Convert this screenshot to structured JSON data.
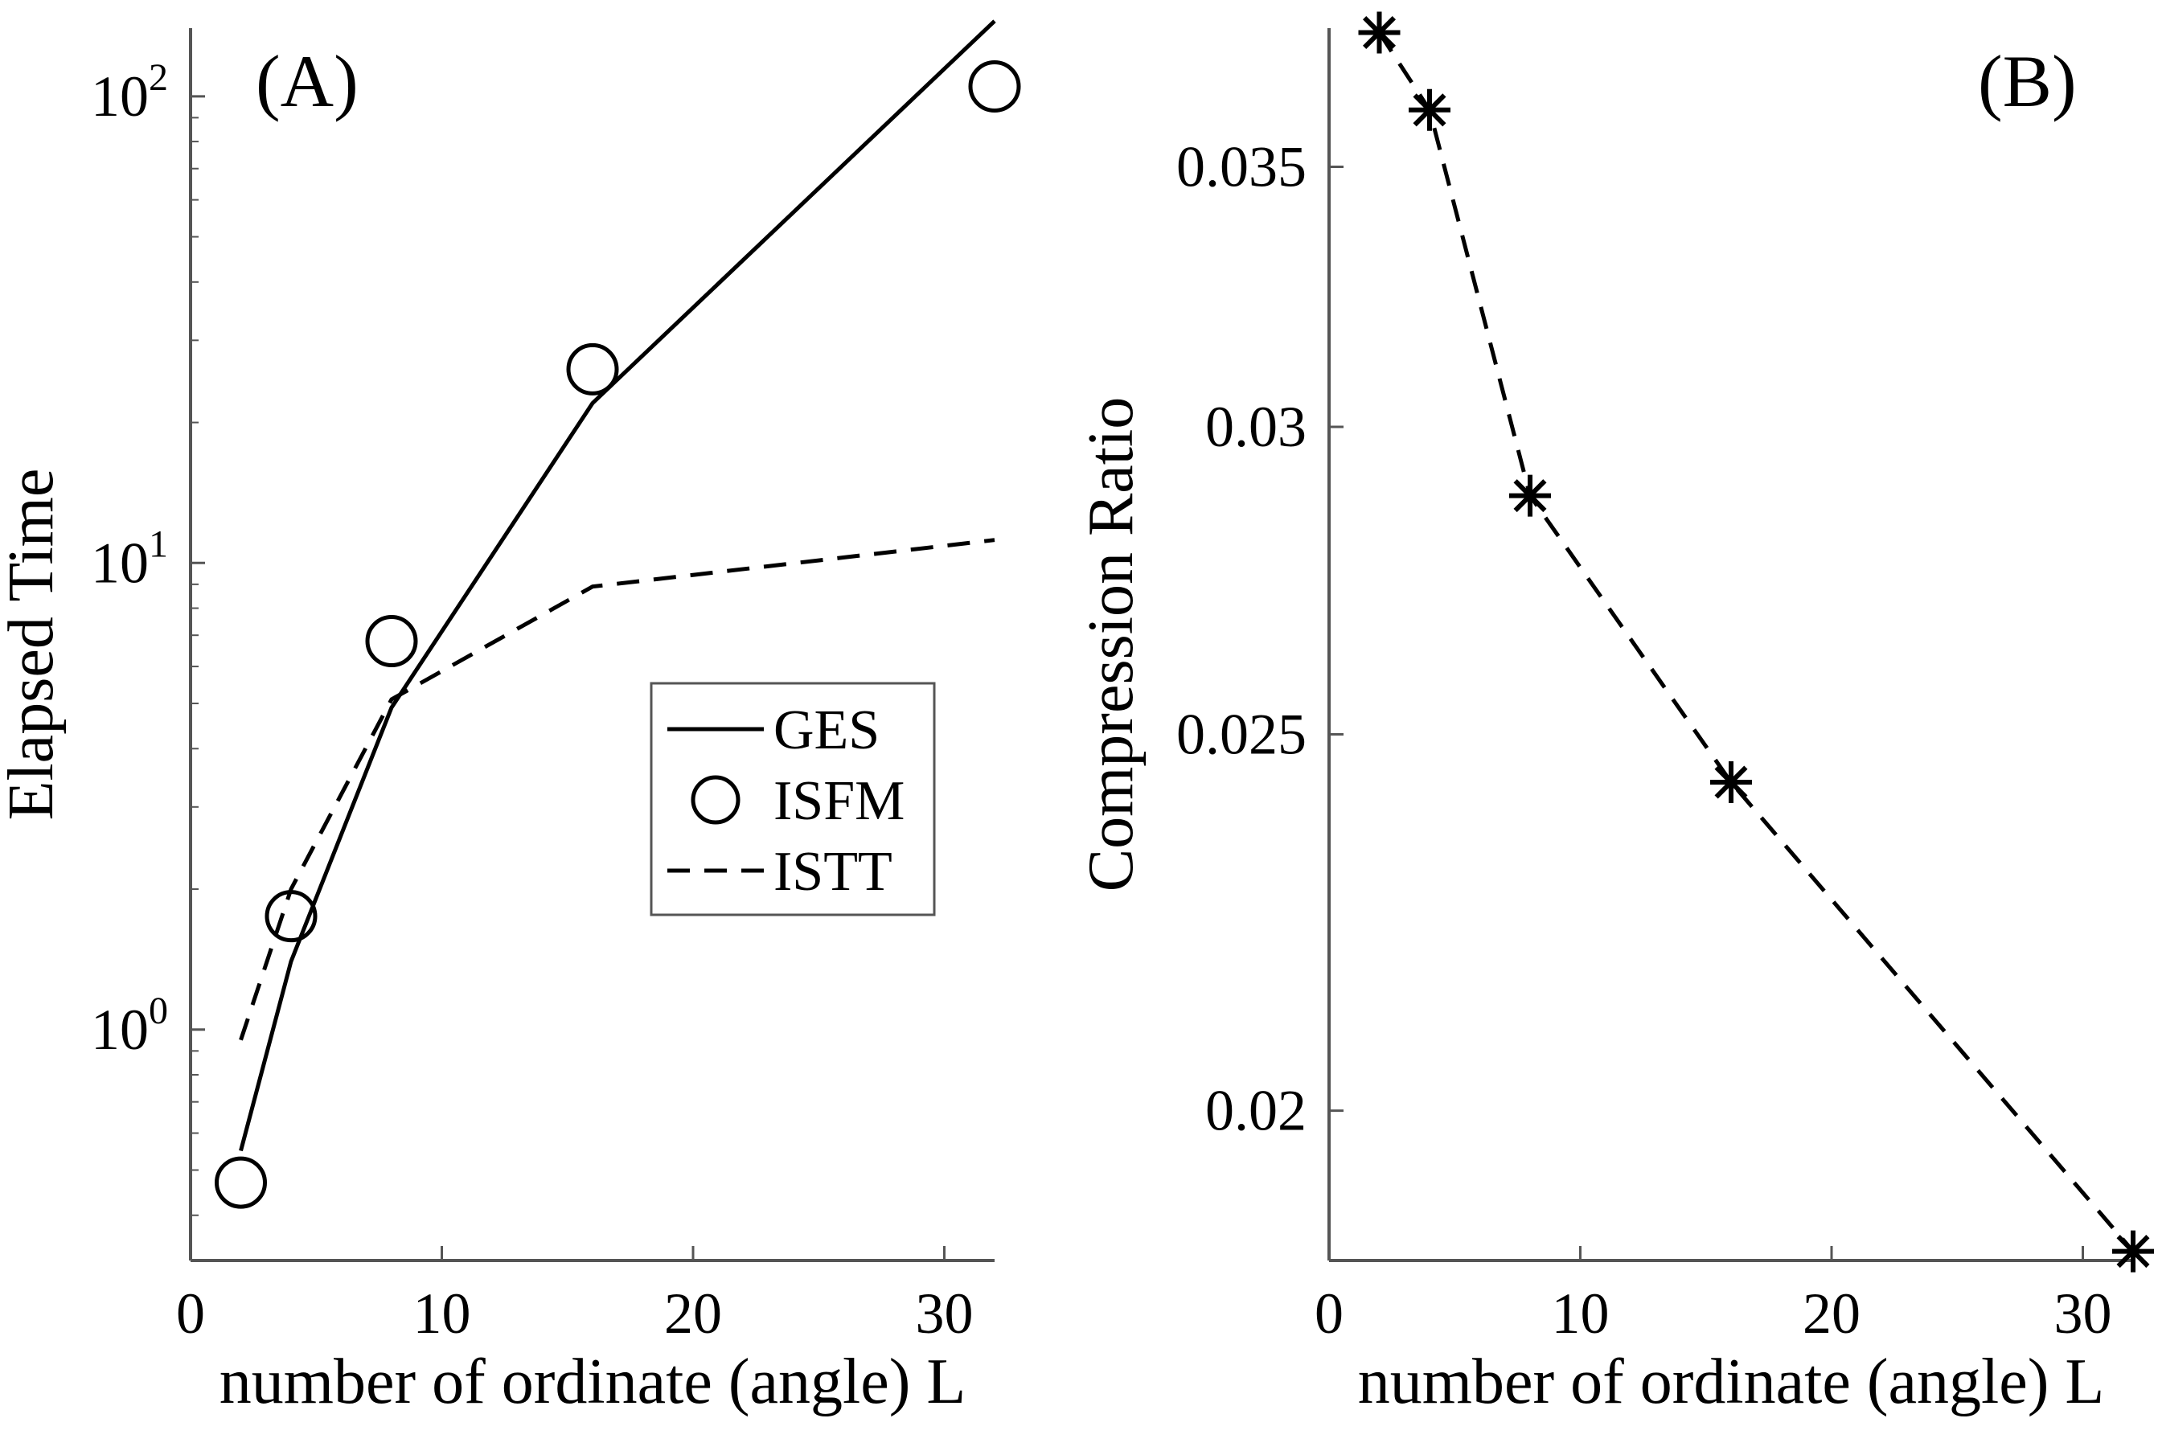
{
  "chart_data": [
    {
      "panel": "(A)",
      "type": "line",
      "xlabel": "number of ordinate (angle) L",
      "ylabel": "Elapsed Time",
      "xlim": [
        0,
        32
      ],
      "ylim": [
        0.32,
        140
      ],
      "yscale": "log",
      "xticks": [
        0,
        10,
        20,
        30
      ],
      "yticks": [
        {
          "value": 1,
          "base": "10",
          "exp": "0"
        },
        {
          "value": 10,
          "base": "10",
          "exp": "1"
        },
        {
          "value": 100,
          "base": "10",
          "exp": "2"
        }
      ],
      "legend": {
        "placement": "center-right",
        "entries": [
          {
            "name": "GES",
            "style": "solid"
          },
          {
            "name": "ISFM",
            "style": "circle"
          },
          {
            "name": "ISTT",
            "style": "dashed"
          }
        ]
      },
      "series": [
        {
          "name": "GES",
          "style": "solid",
          "x": [
            2,
            4,
            8,
            16,
            32
          ],
          "y": [
            0.55,
            1.4,
            4.9,
            22,
            145
          ]
        },
        {
          "name": "ISFM",
          "style": "circle",
          "x": [
            2,
            4,
            8,
            16,
            32
          ],
          "y": [
            0.47,
            1.75,
            6.8,
            26,
            105
          ]
        },
        {
          "name": "ISTT",
          "style": "dashed",
          "x": [
            2,
            4,
            8,
            16,
            32
          ],
          "y": [
            0.95,
            2.0,
            5.1,
            8.9,
            11.2
          ]
        }
      ],
      "grid": false
    },
    {
      "panel": "(B)",
      "type": "line",
      "xlabel": "number of ordinate (angle) L",
      "ylabel": "Compression Ratio",
      "xlim": [
        0,
        32
      ],
      "ylim": [
        0.0183,
        0.038
      ],
      "yscale": "log",
      "xticks": [
        0,
        10,
        20,
        30
      ],
      "yticks": [
        {
          "value": 0.02,
          "label": "0.02"
        },
        {
          "value": 0.025,
          "label": "0.025"
        },
        {
          "value": 0.03,
          "label": "0.03"
        },
        {
          "value": 0.035,
          "label": "0.035"
        }
      ],
      "series": [
        {
          "name": "Compression Ratio",
          "style": "dashed-asterisk",
          "x": [
            2,
            4,
            8,
            16,
            32
          ],
          "y": [
            0.0379,
            0.0362,
            0.0288,
            0.0243,
            0.0184
          ]
        }
      ],
      "grid": false
    }
  ]
}
